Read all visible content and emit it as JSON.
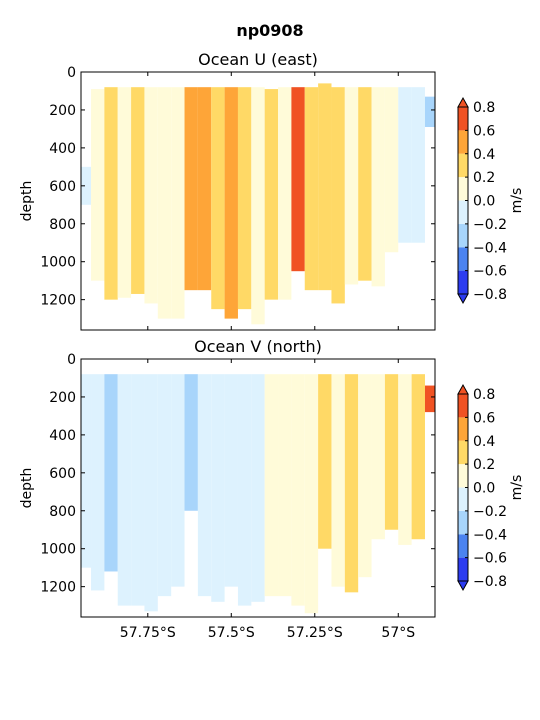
{
  "figure": {
    "title": "np0908"
  },
  "colorbar": {
    "label": "m/s",
    "ticks": [
      "0.8",
      "0.6",
      "0.4",
      "0.2",
      "0.0",
      "−0.2",
      "−0.4",
      "−0.6",
      "−0.8"
    ],
    "levels": [
      -0.8,
      -0.6,
      -0.4,
      -0.2,
      0.0,
      0.2,
      0.4,
      0.6,
      0.8
    ],
    "colors": [
      "#2c3cf0",
      "#4b83f0",
      "#a8d5fb",
      "#ddf2fe",
      "#fffbd9",
      "#ffd966",
      "#fea538",
      "#f05223"
    ],
    "extend": "both"
  },
  "axes": {
    "xlabel": "",
    "xticks": [
      "57.75°S",
      "57.5°S",
      "57.25°S",
      "57°S"
    ],
    "xtick_values": [
      -57.75,
      -57.5,
      -57.25,
      -57.0
    ],
    "xlim": [
      -57.95,
      -56.89
    ],
    "ylabel": "depth",
    "yticks": [
      "0",
      "200",
      "400",
      "600",
      "800",
      "1000",
      "1200"
    ],
    "ytick_values": [
      0,
      200,
      400,
      600,
      800,
      1000,
      1200
    ],
    "ylim": [
      1360,
      0
    ],
    "yinverted": true
  },
  "chart_data": [
    {
      "type": "heatmap",
      "title": "Ocean U (east)",
      "variable": "u",
      "columns": [
        {
          "x": -57.94,
          "top": 500,
          "bottom": 700,
          "value": -0.1
        },
        {
          "x": -57.9,
          "top": 90,
          "bottom": 1100,
          "value": 0.1
        },
        {
          "x": -57.86,
          "top": 80,
          "bottom": 1200,
          "value": 0.3
        },
        {
          "x": -57.82,
          "top": 80,
          "bottom": 1190,
          "value": 0.1
        },
        {
          "x": -57.78,
          "top": 80,
          "bottom": 1170,
          "value": 0.3
        },
        {
          "x": -57.74,
          "top": 80,
          "bottom": 1220,
          "value": 0.1
        },
        {
          "x": -57.7,
          "top": 80,
          "bottom": 1300,
          "value": 0.1
        },
        {
          "x": -57.66,
          "top": 80,
          "bottom": 1300,
          "value": 0.1
        },
        {
          "x": -57.62,
          "top": 80,
          "bottom": 1150,
          "value": 0.5
        },
        {
          "x": -57.58,
          "top": 80,
          "bottom": 1150,
          "value": 0.5
        },
        {
          "x": -57.54,
          "top": 80,
          "bottom": 1250,
          "value": 0.3
        },
        {
          "x": -57.5,
          "top": 80,
          "bottom": 1300,
          "value": 0.5
        },
        {
          "x": -57.46,
          "top": 80,
          "bottom": 1250,
          "value": 0.3
        },
        {
          "x": -57.42,
          "top": 80,
          "bottom": 1330,
          "value": 0.1
        },
        {
          "x": -57.38,
          "top": 90,
          "bottom": 1200,
          "value": 0.3
        },
        {
          "x": -57.34,
          "top": 80,
          "bottom": 1200,
          "value": 0.1
        },
        {
          "x": -57.3,
          "top": 80,
          "bottom": 1050,
          "value": 0.7
        },
        {
          "x": -57.26,
          "top": 80,
          "bottom": 1150,
          "value": 0.3
        },
        {
          "x": -57.22,
          "top": 60,
          "bottom": 1150,
          "value": 0.3
        },
        {
          "x": -57.18,
          "top": 80,
          "bottom": 1220,
          "value": 0.3
        },
        {
          "x": -57.14,
          "top": 80,
          "bottom": 1120,
          "value": 0.1
        },
        {
          "x": -57.1,
          "top": 80,
          "bottom": 1100,
          "value": 0.3
        },
        {
          "x": -57.06,
          "top": 80,
          "bottom": 1130,
          "value": 0.1
        },
        {
          "x": -57.02,
          "top": 80,
          "bottom": 950,
          "value": 0.1
        },
        {
          "x": -56.98,
          "top": 80,
          "bottom": 900,
          "value": -0.1
        },
        {
          "x": -56.94,
          "top": 80,
          "bottom": 900,
          "value": -0.1
        },
        {
          "x": -56.9,
          "top": 130,
          "bottom": 290,
          "value": -0.3
        }
      ]
    },
    {
      "type": "heatmap",
      "title": "Ocean V (north)",
      "variable": "v",
      "columns": [
        {
          "x": -57.94,
          "top": 80,
          "bottom": 1100,
          "value": -0.1
        },
        {
          "x": -57.9,
          "top": 80,
          "bottom": 1220,
          "value": -0.1
        },
        {
          "x": -57.86,
          "top": 80,
          "bottom": 1120,
          "value": -0.3
        },
        {
          "x": -57.82,
          "top": 80,
          "bottom": 1300,
          "value": -0.1
        },
        {
          "x": -57.78,
          "top": 80,
          "bottom": 1300,
          "value": -0.1
        },
        {
          "x": -57.74,
          "top": 80,
          "bottom": 1330,
          "value": -0.1
        },
        {
          "x": -57.7,
          "top": 80,
          "bottom": 1250,
          "value": -0.1
        },
        {
          "x": -57.66,
          "top": 80,
          "bottom": 1200,
          "value": -0.1
        },
        {
          "x": -57.62,
          "top": 80,
          "bottom": 800,
          "value": -0.3
        },
        {
          "x": -57.58,
          "top": 80,
          "bottom": 1250,
          "value": -0.1
        },
        {
          "x": -57.54,
          "top": 80,
          "bottom": 1280,
          "value": -0.1
        },
        {
          "x": -57.5,
          "top": 80,
          "bottom": 1200,
          "value": -0.1
        },
        {
          "x": -57.46,
          "top": 80,
          "bottom": 1300,
          "value": -0.1
        },
        {
          "x": -57.42,
          "top": 80,
          "bottom": 1280,
          "value": -0.1
        },
        {
          "x": -57.38,
          "top": 80,
          "bottom": 1250,
          "value": 0.1
        },
        {
          "x": -57.34,
          "top": 80,
          "bottom": 1250,
          "value": 0.1
        },
        {
          "x": -57.3,
          "top": 80,
          "bottom": 1300,
          "value": 0.1
        },
        {
          "x": -57.26,
          "top": 80,
          "bottom": 1340,
          "value": 0.1
        },
        {
          "x": -57.22,
          "top": 80,
          "bottom": 1000,
          "value": 0.3
        },
        {
          "x": -57.18,
          "top": 80,
          "bottom": 1200,
          "value": 0.1
        },
        {
          "x": -57.14,
          "top": 80,
          "bottom": 1230,
          "value": 0.3
        },
        {
          "x": -57.1,
          "top": 80,
          "bottom": 1150,
          "value": 0.1
        },
        {
          "x": -57.06,
          "top": 80,
          "bottom": 950,
          "value": 0.1
        },
        {
          "x": -57.02,
          "top": 80,
          "bottom": 900,
          "value": 0.3
        },
        {
          "x": -56.98,
          "top": 80,
          "bottom": 980,
          "value": 0.1
        },
        {
          "x": -56.94,
          "top": 80,
          "bottom": 950,
          "value": 0.3
        },
        {
          "x": -56.9,
          "top": 140,
          "bottom": 280,
          "value": 0.7
        }
      ]
    }
  ]
}
